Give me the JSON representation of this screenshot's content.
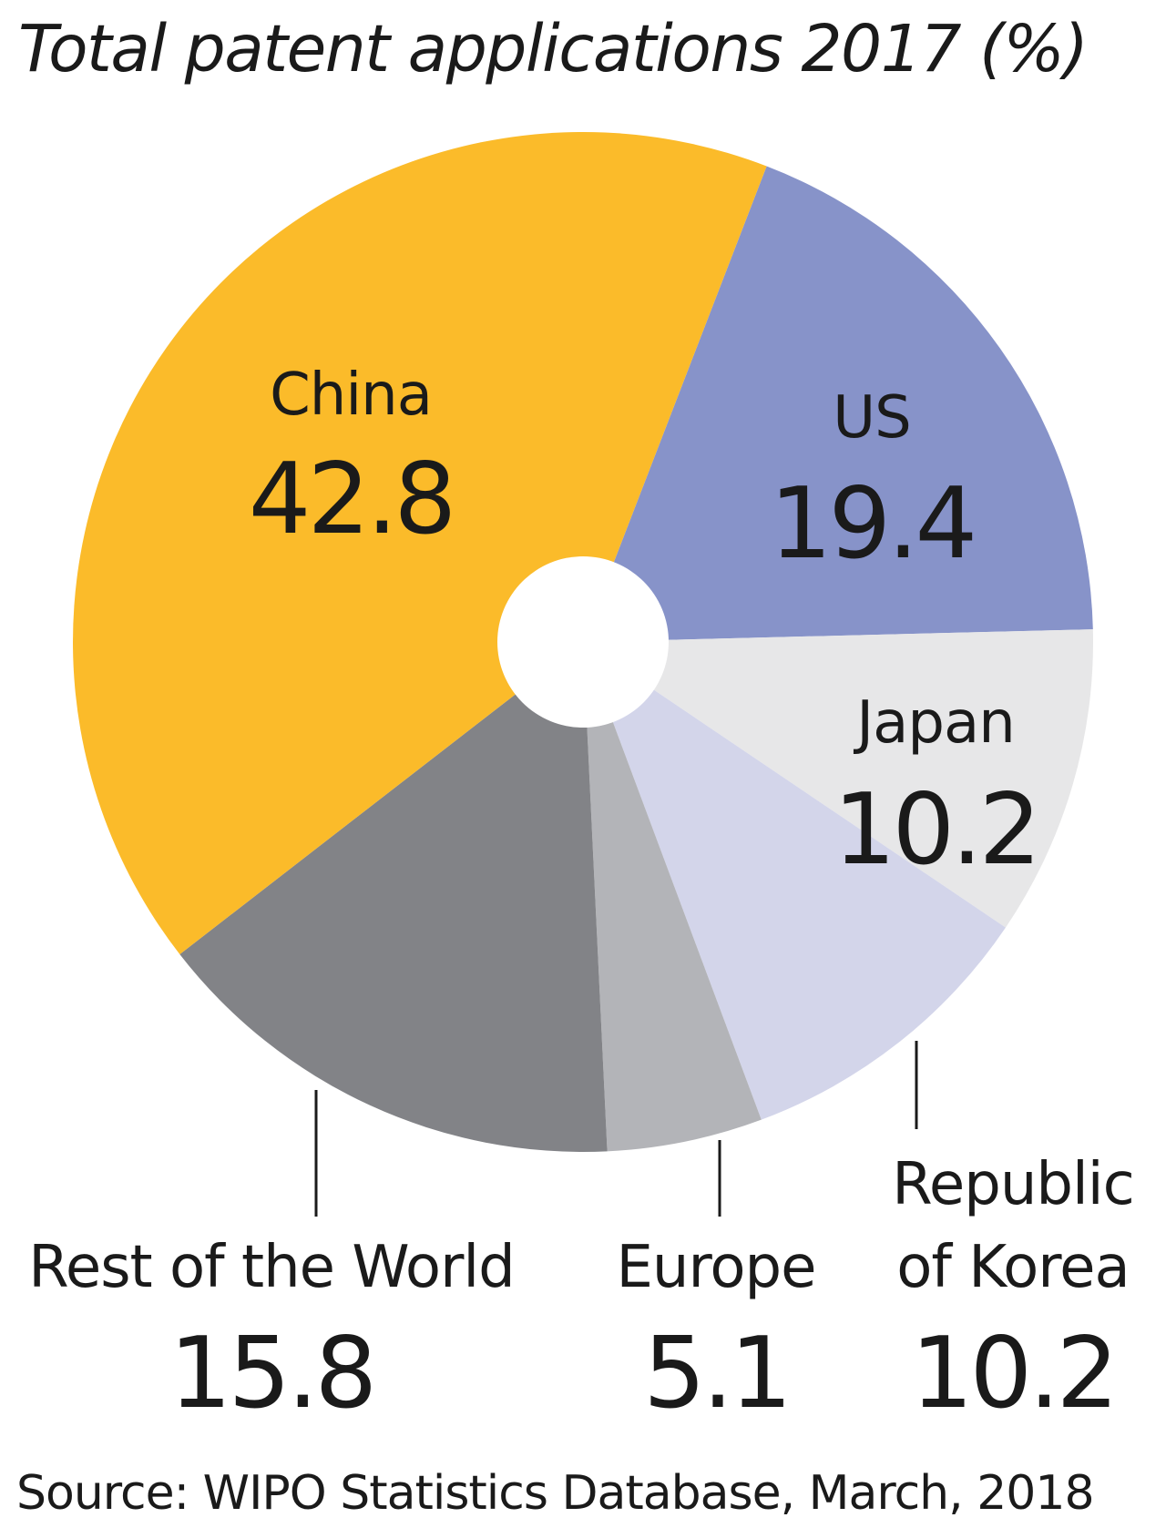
{
  "chart_data": {
    "type": "pie",
    "title": "Total patent applications 2017 (%)",
    "source": "Source: WIPO Statistics Database, March, 2018",
    "slices": [
      {
        "key": "us",
        "name": "US",
        "name_lines": [
          "US"
        ],
        "value": 19.4,
        "value_text": "19.4",
        "color": "#8793c9"
      },
      {
        "key": "japan",
        "name": "Japan",
        "name_lines": [
          "Japan"
        ],
        "value": 10.2,
        "value_text": "10.2",
        "color": "#e7e7e8"
      },
      {
        "key": "korea",
        "name": "Republic of Korea",
        "name_lines": [
          "Republic",
          "of Korea"
        ],
        "value": 10.2,
        "value_text": "10.2",
        "color": "#d3d5ea"
      },
      {
        "key": "europe",
        "name": "Europe",
        "name_lines": [
          "Europe"
        ],
        "value": 5.1,
        "value_text": "5.1",
        "color": "#b3b4b8"
      },
      {
        "key": "rest",
        "name": "Rest of the World",
        "name_lines": [
          "Rest of the World"
        ],
        "value": 15.8,
        "value_text": "15.8",
        "color": "#828387"
      },
      {
        "key": "china",
        "name": "China",
        "name_lines": [
          "China"
        ],
        "value": 42.8,
        "value_text": "42.8",
        "color": "#fbbb2a"
      }
    ]
  }
}
